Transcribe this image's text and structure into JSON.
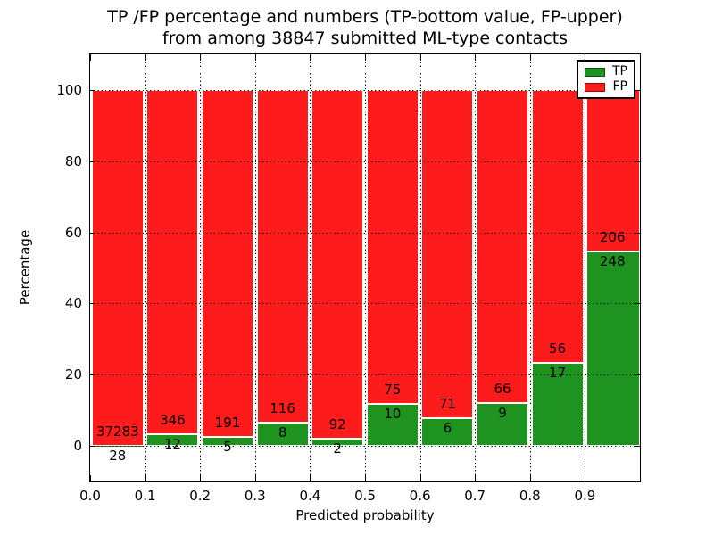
{
  "figure": {
    "title_line1": "TP /FP percentage and numbers (TP-bottom value, FP-upper)",
    "title_line2": "from among 38847 submitted ML-type contacts",
    "xlabel": "Predicted probability",
    "ylabel": "Percentage",
    "background": "#ffffff"
  },
  "legend": {
    "position": "upper-right",
    "items": [
      {
        "label": "TP",
        "color": "#1f9320"
      },
      {
        "label": "FP",
        "color": "#fe1b1b"
      }
    ]
  },
  "chart_data": {
    "type": "bar",
    "stacked": true,
    "units": "percent-of-bin",
    "title": "TP /FP percentage and numbers (TP-bottom value, FP-upper) from among 38847 submitted ML-type contacts",
    "xlabel": "Predicted probability",
    "ylabel": "Percentage",
    "xlim": [
      0.0,
      1.0
    ],
    "ylim": [
      -10,
      110
    ],
    "grid": "dotted",
    "legend_position": "upper right",
    "total_contacts": 38847,
    "bin_width": 0.1,
    "bin_starts": [
      0.0,
      0.1,
      0.2,
      0.3,
      0.4,
      0.5,
      0.6,
      0.7,
      0.8,
      0.9
    ],
    "xtick_labels": [
      "0.0",
      "0.1",
      "0.2",
      "0.3",
      "0.4",
      "0.5",
      "0.6",
      "0.7",
      "0.8",
      "0.9"
    ],
    "xtick_values": [
      0.0,
      0.1,
      0.2,
      0.3,
      0.4,
      0.5,
      0.6,
      0.7,
      0.8,
      0.9
    ],
    "ytick_labels": [
      "0",
      "20",
      "40",
      "60",
      "80",
      "100"
    ],
    "ytick_values": [
      0,
      20,
      40,
      60,
      80,
      100
    ],
    "series": [
      {
        "name": "TP",
        "color": "#1f9320",
        "counts": [
          28,
          12,
          5,
          8,
          2,
          10,
          6,
          9,
          17,
          248
        ]
      },
      {
        "name": "FP",
        "color": "#fe1b1b",
        "counts": [
          37283,
          346,
          191,
          116,
          92,
          75,
          71,
          66,
          56,
          206
        ]
      }
    ],
    "tp_percent_of_bin": [
      0.08,
      3.35,
      2.55,
      6.45,
      2.13,
      11.76,
      7.79,
      12.0,
      23.29,
      54.63
    ]
  }
}
